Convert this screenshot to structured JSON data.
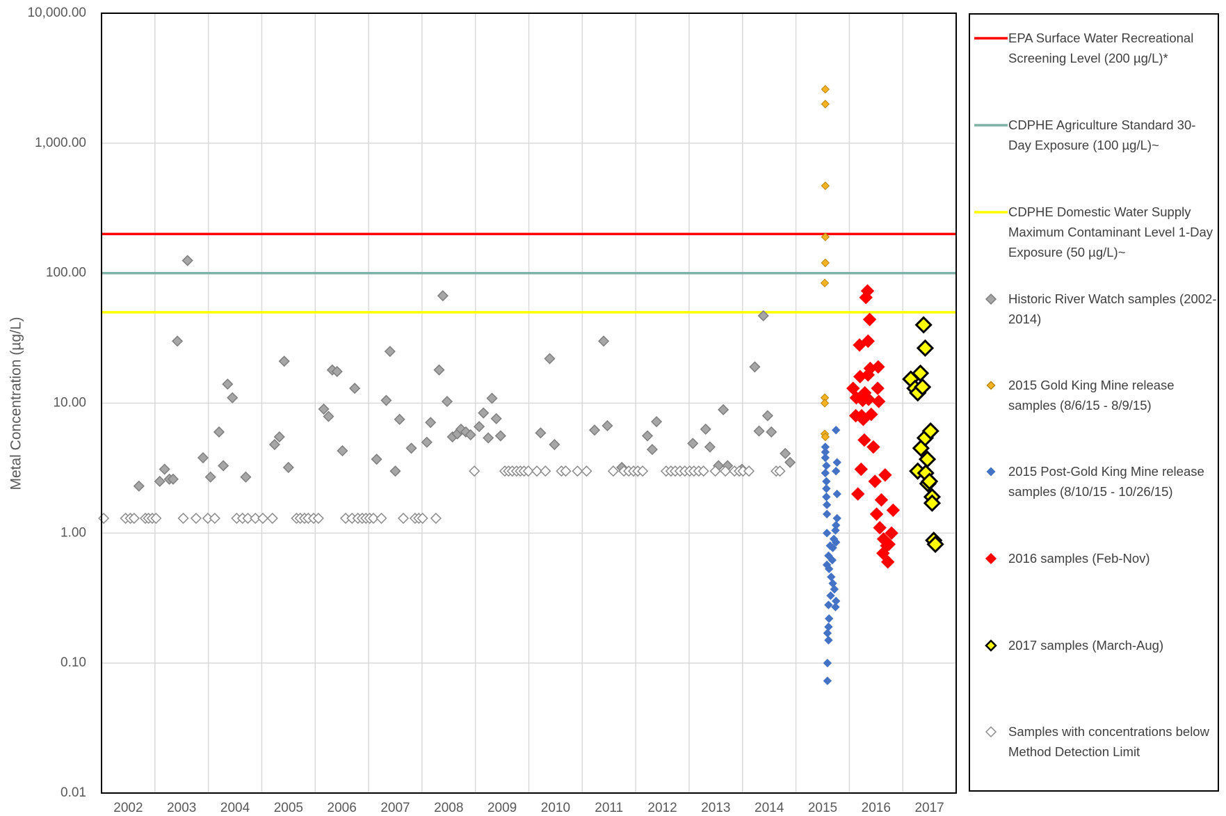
{
  "chart_data": {
    "type": "scatter",
    "y_label": "Metal Concentration (µg/L)",
    "y_scale": "log",
    "ylim": [
      0.01,
      10000
    ],
    "yticks": [
      0.01,
      {
        "value": 0.1,
        "label": "0.10"
      },
      {
        "value": 1,
        "label": "1.00"
      },
      {
        "value": 10,
        "label": "10.00"
      },
      {
        "value": 100,
        "label": "100.00"
      },
      {
        "value": 1000,
        "label": "1,000.00"
      },
      {
        "value": 10000,
        "label": "10,000.00"
      }
    ],
    "xlim": [
      2002,
      2018
    ],
    "xticks": [
      2002,
      2003,
      2004,
      2005,
      2006,
      2007,
      2008,
      2009,
      2010,
      2011,
      2012,
      2013,
      2014,
      2015,
      2016,
      2017
    ],
    "grid": true,
    "legend": "right",
    "series": [
      {
        "name": "EPA Surface Water Recreational Screening Level (200 µg/L)*",
        "type": "hline",
        "color": "#ff0000",
        "values": [
          200
        ]
      },
      {
        "name": "CDPHE Agriculture Standard 30-Day Exposure (100 µg/L)~",
        "type": "hline",
        "color": "#7fb2a6",
        "values": [
          100
        ]
      },
      {
        "name": "CDPHE Domestic Water Supply Maximum Contaminant Level 1-Day Exposure (50 µg/L)~",
        "type": "hline",
        "color": "#ffff00",
        "values": [
          50
        ]
      },
      {
        "name": "Historic River Watch samples (2002-2014)",
        "type": "scatter",
        "marker": "medium",
        "color": "#a6a6a6",
        "edge_color": "#7f7f7f",
        "x": [
          2002.7,
          2003.09,
          2003.18,
          2003.27,
          2003.34,
          2003.42,
          2003.61,
          2003.9,
          2004.04,
          2004.2,
          2004.28,
          2004.36,
          2004.45,
          2004.7,
          2005.24,
          2005.33,
          2005.42,
          2005.5,
          2006.16,
          2006.25,
          2006.32,
          2006.41,
          2006.51,
          2006.74,
          2007.15,
          2007.33,
          2007.4,
          2007.5,
          2007.58,
          2007.8,
          2008.09,
          2008.16,
          2008.32,
          2008.39,
          2008.47,
          2008.57,
          2008.66,
          2008.73,
          2008.82,
          2008.91,
          2009.07,
          2009.15,
          2009.24,
          2009.31,
          2009.39,
          2009.47,
          2010.22,
          2010.39,
          2010.48,
          2011.23,
          2011.47,
          2011.4,
          2011.74,
          2012.22,
          2012.31,
          2012.39,
          2013.07,
          2013.31,
          2013.39,
          2013.64,
          2013.55,
          2013.72,
          2013.99,
          2014.23,
          2014.31,
          2014.39,
          2014.47,
          2014.54,
          2014.8,
          2014.89
        ],
        "values": [
          2.3,
          2.5,
          3.1,
          2.6,
          2.6,
          30,
          125,
          3.8,
          2.7,
          6.0,
          3.3,
          14,
          11,
          2.7,
          4.8,
          5.5,
          21,
          3.2,
          9.0,
          7.9,
          18,
          17.5,
          4.3,
          13,
          3.7,
          10.5,
          25,
          3.0,
          7.5,
          4.5,
          5.0,
          7.1,
          18,
          67,
          10.3,
          5.5,
          5.8,
          6.3,
          6.0,
          5.7,
          6.6,
          8.4,
          5.4,
          10.9,
          7.6,
          5.6,
          5.9,
          22,
          4.8,
          6.2,
          6.7,
          30,
          3.2,
          5.6,
          4.4,
          7.2,
          4.9,
          6.3,
          4.6,
          8.9,
          3.3,
          3.3,
          3.1,
          19,
          6.1,
          47,
          8.0,
          6.0,
          4.1,
          3.5
        ]
      },
      {
        "name": "2015 Gold King Mine release samples (8/6/15 - 8/9/15)",
        "type": "scatter",
        "marker": "small",
        "color": "#f5b324",
        "edge_color": "#b8860b",
        "x": [
          2015.55,
          2015.55,
          2015.55,
          2015.55,
          2015.55,
          2015.54,
          2015.54,
          2015.54,
          2015.54,
          2015.55
        ],
        "values": [
          2600,
          2000,
          470,
          190,
          120,
          84,
          11,
          10,
          5.8,
          5.5
        ]
      },
      {
        "name": "2015 Post-Gold King Mine release samples (8/10/15 - 10/26/15)",
        "type": "scatter",
        "marker": "small",
        "color": "#4472c4",
        "edge_color": "#4472c4",
        "x": [
          2015.75,
          2015.77,
          2015.75,
          2015.77,
          2015.55,
          2015.55,
          2015.55,
          2015.57,
          2015.55,
          2015.57,
          2015.57,
          2015.57,
          2015.58,
          2015.58,
          2015.77,
          2015.75,
          2015.74,
          2015.58,
          2015.71,
          2015.75,
          2015.64,
          2015.69,
          2015.61,
          2015.68,
          2015.58,
          2015.62,
          2015.66,
          2015.69,
          2015.72,
          2015.65,
          2015.75,
          2015.74,
          2015.61,
          2015.62,
          2015.61,
          2015.59,
          2015.61,
          2015.59,
          2015.59
        ],
        "values": [
          6.2,
          3.5,
          3.0,
          2.0,
          4.2,
          4.6,
          3.8,
          3.3,
          2.9,
          2.5,
          2.2,
          1.9,
          1.65,
          1.4,
          1.3,
          1.15,
          1.05,
          1.0,
          0.9,
          0.85,
          0.8,
          0.77,
          0.67,
          0.62,
          0.57,
          0.53,
          0.46,
          0.41,
          0.37,
          0.33,
          0.3,
          0.27,
          0.28,
          0.22,
          0.19,
          0.17,
          0.15,
          0.1,
          0.073
        ]
      },
      {
        "name": "2016 samples (Feb-Nov)",
        "type": "scatter",
        "marker": "large",
        "color": "#ff0000",
        "edge_color": "#ff0000",
        "x": [
          2016.07,
          2016.12,
          2016.13,
          2016.16,
          2016.19,
          2016.2,
          2016.22,
          2016.23,
          2016.25,
          2016.26,
          2016.28,
          2016.29,
          2016.31,
          2016.34,
          2016.35,
          2016.35,
          2016.36,
          2016.38,
          2016.39,
          2016.41,
          2016.45,
          2016.48,
          2016.51,
          2016.53,
          2016.54,
          2016.55,
          2016.57,
          2016.6,
          2016.63,
          2016.64,
          2016.67,
          2016.7,
          2016.72,
          2016.74,
          2016.79,
          2016.82
        ],
        "values": [
          13,
          8,
          11,
          2.0,
          28,
          16,
          3.1,
          8,
          10.5,
          7.5,
          5.2,
          12,
          65,
          73,
          30,
          16.5,
          10.7,
          44,
          18.5,
          8.2,
          4.6,
          2.5,
          1.4,
          13,
          19,
          10.3,
          1.1,
          1.8,
          0.7,
          0.9,
          2.8,
          0.8,
          0.6,
          0.82,
          1.0,
          1.5
        ]
      },
      {
        "name": "2017 samples (March-Aug)",
        "type": "scatter",
        "marker": "xlarge",
        "color": "#ffff00",
        "edge_color": "#000000",
        "x": [
          2017.15,
          2017.23,
          2017.28,
          2017.33,
          2017.37,
          2017.39,
          2017.42,
          2017.28,
          2017.34,
          2017.42,
          2017.52,
          2017.46,
          2017.43,
          2017.47,
          2017.5,
          2017.55,
          2017.55,
          2017.58,
          2017.61
        ],
        "values": [
          15.3,
          13,
          12,
          17,
          13.3,
          40,
          26.5,
          3.0,
          4.5,
          5.4,
          6.1,
          3.7,
          2.9,
          2.4,
          2.5,
          1.9,
          1.7,
          0.88,
          0.82
        ]
      },
      {
        "name": "Samples with concentrations below Method Detection Limit",
        "type": "scatter",
        "marker": "medium",
        "color": "#ffffff",
        "edge_color": "#8c8c8c",
        "x": [
          2002.04,
          2002.45,
          2002.54,
          2002.61,
          2002.82,
          2002.88,
          2002.95,
          2003.02,
          2003.53,
          2003.77,
          2003.99,
          2004.12,
          2004.53,
          2004.64,
          2004.74,
          2004.88,
          2005.02,
          2005.2,
          2005.65,
          2005.72,
          2005.8,
          2005.87,
          2005.97,
          2006.06,
          2006.57,
          2006.69,
          2006.8,
          2006.88,
          2006.95,
          2007.02,
          2007.09,
          2007.24,
          2007.65,
          2007.87,
          2007.94,
          2008.01,
          2008.26,
          2008.98,
          2009.55,
          2009.62,
          2009.69,
          2009.77,
          2009.84,
          2009.91,
          2009.99,
          2010.15,
          2010.31,
          2010.61,
          2010.69,
          2010.91,
          2011.08,
          2011.58,
          2011.78,
          2011.87,
          2011.96,
          2012.04,
          2012.13,
          2012.57,
          2012.66,
          2012.74,
          2012.83,
          2012.92,
          2013.01,
          2013.09,
          2013.18,
          2013.27,
          2013.49,
          2013.68,
          2013.85,
          2013.94,
          2014.01,
          2014.12,
          2014.63,
          2014.7
        ],
        "values": [
          1.3,
          1.3,
          1.3,
          1.3,
          1.3,
          1.3,
          1.3,
          1.3,
          1.3,
          1.3,
          1.3,
          1.3,
          1.3,
          1.3,
          1.3,
          1.3,
          1.3,
          1.3,
          1.3,
          1.3,
          1.3,
          1.3,
          1.3,
          1.3,
          1.3,
          1.3,
          1.3,
          1.3,
          1.3,
          1.3,
          1.3,
          1.3,
          1.3,
          1.3,
          1.3,
          1.3,
          1.3,
          3.0,
          3.0,
          3.0,
          3.0,
          3.0,
          3.0,
          3.0,
          3.0,
          3.0,
          3.0,
          3.0,
          3.0,
          3.0,
          3.0,
          3.0,
          3.0,
          3.0,
          3.0,
          3.0,
          3.0,
          3.0,
          3.0,
          3.0,
          3.0,
          3.0,
          3.0,
          3.0,
          3.0,
          3.0,
          3.0,
          3.0,
          3.0,
          3.0,
          3.0,
          3.0,
          3.0,
          3.0
        ]
      }
    ]
  }
}
